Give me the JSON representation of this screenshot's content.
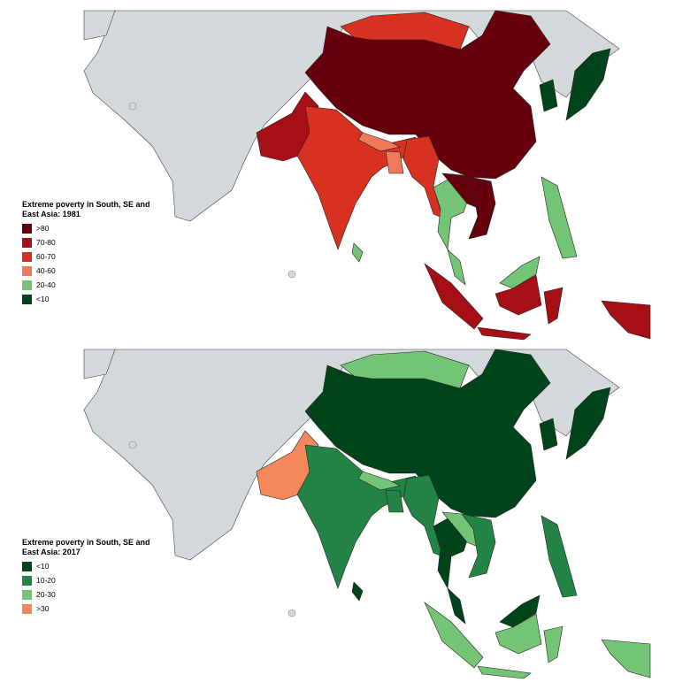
{
  "maps": [
    {
      "title": "Extreme poverty in South, SE and East Asia: 1981",
      "legend": [
        {
          "label": ">80",
          "color": "#67000d"
        },
        {
          "label": "70-80",
          "color": "#a50f15"
        },
        {
          "label": "60-70",
          "color": "#d73221"
        },
        {
          "label": "40-60",
          "color": "#f0795a"
        },
        {
          "label": "20-40",
          "color": "#74c476"
        },
        {
          "label": "<10",
          "color": "#00441b"
        }
      ]
    },
    {
      "title": "Extreme poverty in South, SE and East Asia: 2017",
      "legend": [
        {
          "label": "<10",
          "color": "#00441b"
        },
        {
          "label": "10-20",
          "color": "#238445"
        },
        {
          "label": "20-30",
          "color": "#74c476"
        },
        {
          "label": ">30",
          "color": "#f4885b"
        }
      ]
    }
  ]
}
